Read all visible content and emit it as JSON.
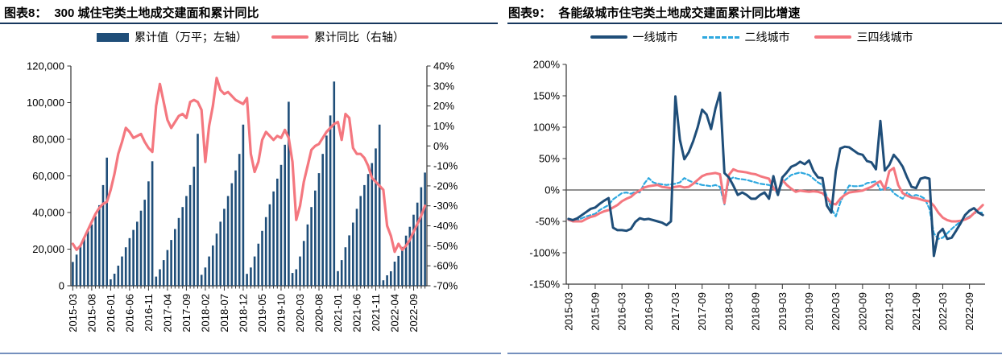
{
  "page": {
    "background": "#ffffff",
    "title_underline_color": "#17375E",
    "bottom_rule_color": "#7590BE",
    "axis_color": "#333333",
    "zero_line_color": "#4d4d4d"
  },
  "charts": [
    {
      "name": "chart-8",
      "title_prefix": "图表8：",
      "title": "300 城住宅类土地成交建面和累计同比",
      "legend": [
        {
          "label": "累计值（万平；左轴）",
          "swatch": "bar",
          "color": "#1F4E79"
        },
        {
          "label": "累计同比（右轴）",
          "swatch": "line",
          "color": "#F4777F"
        }
      ],
      "chart_data": {
        "type": "bar+line",
        "x_start_month": "2015-03",
        "x_frequency": "monthly",
        "x_label_every": 5,
        "x_tick_labels": [
          "2015-03",
          "2015-08",
          "2016-01",
          "2016-06",
          "2016-11",
          "2017-04",
          "2017-09",
          "2018-02",
          "2018-07",
          "2018-12",
          "2019-05",
          "2019-10",
          "2020-03",
          "2020-08",
          "2021-01",
          "2021-06",
          "2021-11",
          "2022-04",
          "2022-09"
        ],
        "y_left_axis": {
          "min": 0,
          "max": 120000,
          "tick_labels_top_to_bottom": [
            "120,000",
            "100,000",
            "80,000",
            "60,000",
            "40,000",
            "20,000",
            "0"
          ]
        },
        "y_right_axis": {
          "min": -70,
          "max": 40,
          "tick_labels_top_to_bottom": [
            "40%",
            "30%",
            "20%",
            "10%",
            "0%",
            "-10%",
            "-20%",
            "-30%",
            "-40%",
            "-50%",
            "-60%",
            "-70%"
          ]
        },
        "series": [
          {
            "name": "累计值（万平；左轴）",
            "type": "bar",
            "axis": "left",
            "unit": "万平",
            "color": "#1F4E79",
            "values": [
              13000,
              17000,
              21500,
              26000,
              30000,
              33500,
              38000,
              44000,
              55000,
              70000,
              3500,
              6600,
              11000,
              16000,
              21000,
              26000,
              30500,
              35000,
              41000,
              47000,
              57000,
              68000,
              5000,
              9000,
              14000,
              19500,
              25000,
              31000,
              37000,
              43000,
              49000,
              55000,
              65000,
              83000,
              6000,
              10000,
              16000,
              22000,
              28500,
              35000,
              42000,
              49000,
              56000,
              63000,
              72000,
              88000,
              6500,
              10000,
              16000,
              23000,
              30000,
              37500,
              44500,
              51500,
              58500,
              66000,
              77000,
              100500,
              7000,
              9000,
              16000,
              24500,
              33500,
              43000,
              52000,
              61500,
              72000,
              82000,
              93000,
              111500,
              8000,
              14000,
              21000,
              27500,
              34500,
              42000,
              49000,
              55000,
              61000,
              67000,
              75000,
              88000,
              3000,
              5700,
              7900,
              13200,
              16300,
              21200,
              27400,
              32200,
              38800,
              45400,
              53800,
              61800
            ]
          },
          {
            "name": "累计同比（右轴）",
            "type": "line",
            "axis": "right",
            "unit": "%",
            "color": "#F4777F",
            "values": [
              -49,
              -52,
              -50,
              -46,
              -42,
              -38,
              -34,
              -31,
              -29,
              -28,
              -22,
              -14,
              -4,
              2,
              9,
              7,
              4,
              5,
              6,
              2,
              -1,
              -3,
              20,
              31,
              22,
              13,
              9,
              12,
              15,
              16,
              14,
              22,
              23,
              22,
              18,
              -8,
              10,
              20,
              34,
              28,
              26,
              27,
              25,
              23,
              22,
              21,
              24,
              -4,
              -13,
              -8,
              3,
              7,
              5,
              3,
              5,
              4,
              8,
              4,
              -8,
              -37,
              -30,
              -18,
              -10,
              -2,
              0,
              1,
              4,
              7,
              9,
              11,
              12,
              3,
              16,
              14,
              -1,
              -4,
              -4,
              -6,
              -10,
              -16,
              -18,
              -20,
              -22,
              -40,
              -45,
              -53,
              -49,
              -52,
              -50,
              -47,
              -43,
              -39,
              -35,
              -30
            ]
          }
        ]
      }
    },
    {
      "name": "chart-9",
      "title_prefix": "图表9：",
      "title": "各能级城市住宅类土地成交建面累计同比增速",
      "legend": [
        {
          "label": "一线城市",
          "swatch": "line",
          "color": "#1F4E79"
        },
        {
          "label": "二线城市",
          "swatch": "dashed",
          "color": "#2EA8DF"
        },
        {
          "label": "三四线城市",
          "swatch": "line",
          "color": "#F4777F"
        }
      ],
      "chart_data": {
        "type": "line",
        "x_start_month": "2015-03",
        "x_frequency": "monthly",
        "x_label_every": 6,
        "x_tick_labels": [
          "2015-03",
          "2015-09",
          "2016-03",
          "2016-09",
          "2017-03",
          "2017-09",
          "2018-03",
          "2018-09",
          "2019-03",
          "2019-09",
          "2020-03",
          "2020-09",
          "2021-03",
          "2021-09",
          "2022-03",
          "2022-09"
        ],
        "y_axis": {
          "min": -150,
          "max": 200,
          "unit": "%",
          "tick_labels_top_to_bottom": [
            "200%",
            "150%",
            "100%",
            "50%",
            "0%",
            "-50%",
            "-100%",
            "-150%"
          ]
        },
        "zero_line": true,
        "series": [
          {
            "name": "一线城市",
            "style": "solid",
            "unit": "%",
            "color": "#1F4E79",
            "values": [
              -46,
              -48,
              -45,
              -40,
              -35,
              -30,
              -28,
              -22,
              -17,
              -13,
              -60,
              -64,
              -64,
              -65,
              -62,
              -51,
              -45,
              -47,
              -46,
              -48,
              -50,
              -52,
              -56,
              -50,
              149,
              80,
              49,
              60,
              78,
              100,
              128,
              120,
              97,
              130,
              155,
              27,
              20,
              7,
              -8,
              -4,
              -8,
              -14,
              -14,
              -8,
              -4,
              -14,
              22,
              -8,
              20,
              28,
              37,
              40,
              45,
              41,
              47,
              30,
              20,
              19,
              -25,
              -36,
              30,
              66,
              69,
              68,
              63,
              58,
              56,
              46,
              44,
              33,
              110,
              31,
              40,
              56,
              48,
              37,
              20,
              5,
              3,
              18,
              20,
              18,
              -105,
              -69,
              -62,
              -78,
              -76,
              -65,
              -53,
              -40,
              -33,
              -29,
              -36,
              -40
            ]
          },
          {
            "name": "二线城市",
            "style": "dashed",
            "unit": "%",
            "color": "#2EA8DF",
            "values": [
              -48,
              -50,
              -48,
              -45,
              -42,
              -40,
              -38,
              -32,
              -28,
              -24,
              -15,
              -10,
              -5,
              -4,
              -6,
              -3,
              -4,
              10,
              19,
              12,
              10,
              9,
              8,
              9,
              10,
              12,
              19,
              15,
              12,
              10,
              8,
              7,
              6,
              8,
              5,
              -23,
              16,
              20,
              18,
              17,
              16,
              14,
              12,
              10,
              9,
              8,
              5,
              -8,
              12,
              18,
              24,
              26,
              28,
              26,
              24,
              18,
              12,
              8,
              -10,
              -30,
              -42,
              -20,
              -5,
              7,
              6,
              6,
              7,
              11,
              12,
              14,
              0,
              2,
              4,
              -5,
              -10,
              -14,
              -4,
              -10,
              -8,
              -10,
              -14,
              -30,
              -69,
              -78,
              -76,
              -69,
              -62,
              -56,
              -50,
              -46,
              -42,
              -37,
              -36,
              -36
            ]
          },
          {
            "name": "三四线城市",
            "style": "solid",
            "unit": "%",
            "color": "#F4777F",
            "values": [
              -47,
              -50,
              -50,
              -50,
              -46,
              -43,
              -41,
              -37,
              -34,
              -32,
              -28,
              -24,
              -18,
              -14,
              -11,
              -5,
              -1,
              4,
              6,
              7,
              8,
              5,
              4,
              3,
              5,
              6,
              4,
              5,
              10,
              16,
              22,
              25,
              26,
              27,
              25,
              -21,
              24,
              33,
              30,
              29,
              28,
              26,
              25,
              22,
              20,
              18,
              3,
              -4,
              16,
              8,
              2,
              -3,
              -1,
              -2,
              -3,
              -2,
              -3,
              -5,
              -12,
              -21,
              -23,
              -14,
              -8,
              -4,
              -3,
              -2,
              -1,
              2,
              5,
              10,
              14,
              1,
              30,
              35,
              8,
              -5,
              -9,
              -12,
              -13,
              -15,
              -17,
              -18,
              -25,
              -36,
              -44,
              -48,
              -50,
              -50,
              -49,
              -47,
              -44,
              -37,
              -31,
              -24
            ]
          }
        ]
      }
    }
  ]
}
